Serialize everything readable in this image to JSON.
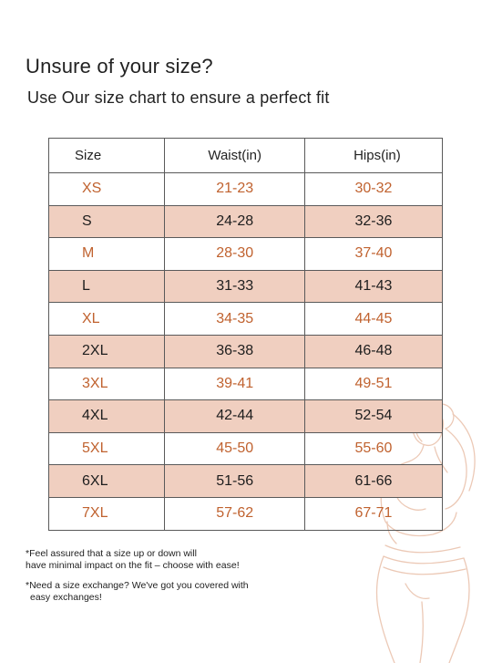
{
  "title": "Unsure of your size?",
  "subtitle": "Use Our size chart to ensure a perfect fit",
  "table": {
    "headers": {
      "size": "Size",
      "waist": "Waist(in)",
      "hips": "Hips(in)"
    },
    "rows": [
      {
        "size": "XS",
        "waist": "21-23",
        "hips": "30-32"
      },
      {
        "size": "S",
        "waist": "24-28",
        "hips": "32-36"
      },
      {
        "size": "M",
        "waist": "28-30",
        "hips": "37-40"
      },
      {
        "size": "L",
        "waist": "31-33",
        "hips": "41-43"
      },
      {
        "size": "XL",
        "waist": "34-35",
        "hips": "44-45"
      },
      {
        "size": "2XL",
        "waist": "36-38",
        "hips": "46-48"
      },
      {
        "size": "3XL",
        "waist": "39-41",
        "hips": "49-51"
      },
      {
        "size": "4XL",
        "waist": "42-44",
        "hips": "52-54"
      },
      {
        "size": "5XL",
        "waist": "45-50",
        "hips": "55-60"
      },
      {
        "size": "6XL",
        "waist": "51-56",
        "hips": "61-66"
      },
      {
        "size": "7XL",
        "waist": "57-62",
        "hips": "67-71"
      }
    ]
  },
  "notes": {
    "note1_line1": "*Feel assured that a size up or down will",
    "note1_line2": "have minimal impact on the fit – choose with ease!",
    "note2_line1": "*Need a size exchange? We've got you covered with",
    "note2_line2": "easy exchanges!"
  },
  "colors": {
    "accent_text": "#c0622f",
    "row_fill": "#f0cfc0",
    "figure_stroke": "#ecc9b6"
  },
  "icons": {
    "figure": "woman-line-illustration"
  }
}
